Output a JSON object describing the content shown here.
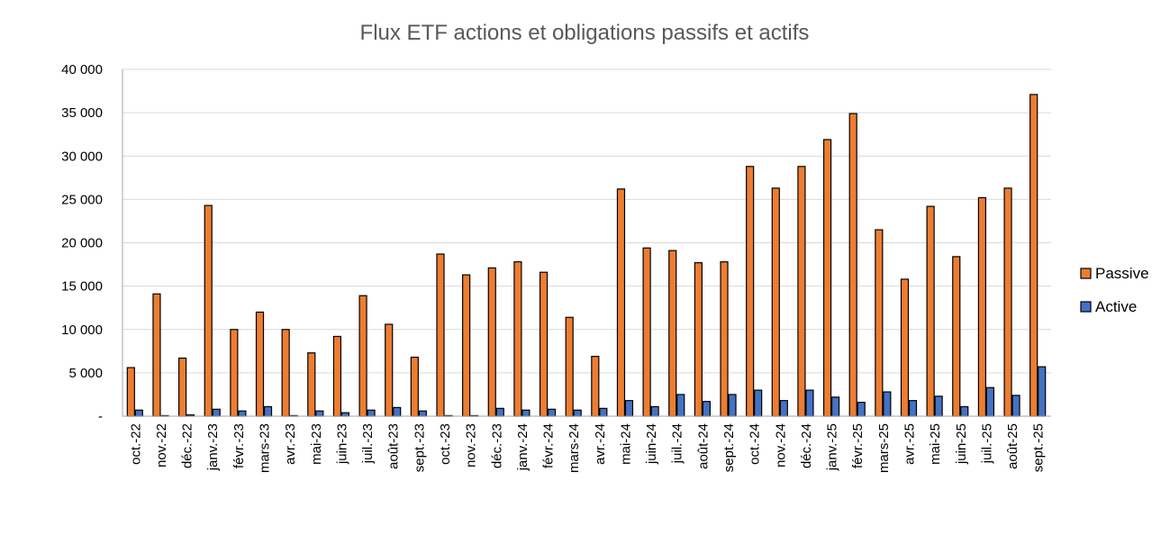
{
  "chart_data": {
    "type": "bar",
    "title": "Flux ETF actions et obligations passifs et actifs",
    "xlabel": "",
    "ylabel": "",
    "ylim": [
      0,
      40000
    ],
    "y_ticks": [
      "-",
      "5 000",
      "10 000",
      "15 000",
      "20 000",
      "25 000",
      "30 000",
      "35 000",
      "40 000"
    ],
    "grid": true,
    "legend_position": "right",
    "categories": [
      "oct.-22",
      "nov.-22",
      "déc.-22",
      "janv.-23",
      "févr.-23",
      "mars-23",
      "avr.-23",
      "mai-23",
      "juin-23",
      "juil.-23",
      "août-23",
      "sept.-23",
      "oct.-23",
      "nov.-23",
      "déc.-23",
      "janv.-24",
      "févr.-24",
      "mars-24",
      "avr.-24",
      "mai-24",
      "juin-24",
      "juil.-24",
      "août-24",
      "sept.-24",
      "oct.-24",
      "nov.-24",
      "déc.-24",
      "janv.-25",
      "févr.-25",
      "mars-25",
      "avr.-25",
      "mai-25",
      "juin-25",
      "juil.-25",
      "août-25",
      "sept.-25"
    ],
    "series": [
      {
        "name": "Passive",
        "color": "#ED7D31",
        "values": [
          5600,
          14100,
          6700,
          24300,
          10000,
          12000,
          10000,
          7300,
          9200,
          13900,
          10600,
          6800,
          18700,
          16300,
          17100,
          17800,
          16600,
          11400,
          6900,
          26200,
          19400,
          19100,
          17700,
          17800,
          28800,
          26300,
          28800,
          31900,
          34900,
          21500,
          15800,
          24200,
          18400,
          25200,
          26300,
          37100
        ]
      },
      {
        "name": "Active",
        "color": "#4472C4",
        "values": [
          700,
          50,
          150,
          800,
          600,
          1100,
          50,
          600,
          400,
          700,
          1000,
          600,
          50,
          50,
          900,
          700,
          800,
          700,
          900,
          1800,
          1100,
          2500,
          1700,
          2500,
          3000,
          1800,
          3000,
          2200,
          1600,
          2800,
          1800,
          2300,
          1100,
          3300,
          2400,
          5700
        ]
      }
    ]
  }
}
